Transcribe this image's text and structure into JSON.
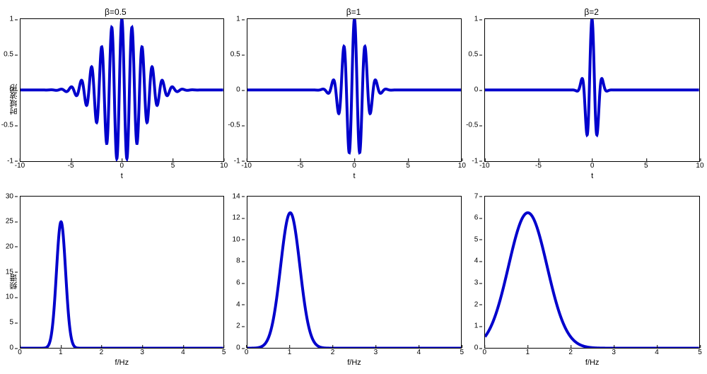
{
  "layout": {
    "rows": 2,
    "cols": 3,
    "background_color": "#ffffff"
  },
  "line_color": "#0000cc",
  "axis_color": "#000000",
  "tick_fontsize": 10,
  "label_fontsize": 11,
  "title_fontsize": 12,
  "row_ylabels": [
    "时域波形",
    "频谱"
  ],
  "panels": [
    {
      "id": "p0",
      "title": "β=0.5",
      "xlabel": "t",
      "ylabel": "时域波形",
      "type": "line",
      "xlim": [
        -10,
        10
      ],
      "ylim": [
        -1,
        1
      ],
      "xticks": [
        -10,
        -5,
        0,
        5,
        10
      ],
      "yticks": [
        -1,
        -0.5,
        0,
        0.5,
        1
      ],
      "formula": "gabor_wave",
      "params": {
        "beta": 0.5,
        "f0": 1.0
      }
    },
    {
      "id": "p1",
      "title": "β=1",
      "xlabel": "t",
      "ylabel": "",
      "type": "line",
      "xlim": [
        -10,
        10
      ],
      "ylim": [
        -1,
        1
      ],
      "xticks": [
        -10,
        -5,
        0,
        5,
        10
      ],
      "yticks": [
        -1,
        -0.5,
        0,
        0.5,
        1
      ],
      "formula": "gabor_wave",
      "params": {
        "beta": 1.0,
        "f0": 1.0
      }
    },
    {
      "id": "p2",
      "title": "β=2",
      "xlabel": "t",
      "ylabel": "",
      "type": "line",
      "xlim": [
        -10,
        10
      ],
      "ylim": [
        -1,
        1
      ],
      "xticks": [
        -10,
        -5,
        0,
        5,
        10
      ],
      "yticks": [
        -1,
        -0.5,
        0,
        0.5,
        1
      ],
      "formula": "gabor_wave",
      "params": {
        "beta": 2.0,
        "f0": 1.0
      }
    },
    {
      "id": "p3",
      "title": "",
      "xlabel": "f/Hz",
      "ylabel": "频谱",
      "type": "line",
      "xlim": [
        0,
        5
      ],
      "ylim": [
        0,
        30
      ],
      "xticks": [
        0,
        1,
        2,
        3,
        4,
        5
      ],
      "yticks": [
        0,
        5,
        10,
        15,
        20,
        25,
        30
      ],
      "formula": "gabor_spectrum",
      "params": {
        "beta": 0.5,
        "f0": 1.0,
        "amp": 25.0,
        "sigma_f": 0.113
      }
    },
    {
      "id": "p4",
      "title": "",
      "xlabel": "f/Hz",
      "ylabel": "",
      "type": "line",
      "xlim": [
        0,
        5
      ],
      "ylim": [
        0,
        14
      ],
      "xticks": [
        0,
        1,
        2,
        3,
        4,
        5
      ],
      "yticks": [
        0,
        2,
        4,
        6,
        8,
        10,
        12,
        14
      ],
      "formula": "gabor_spectrum",
      "params": {
        "beta": 1.0,
        "f0": 1.0,
        "amp": 12.5,
        "sigma_f": 0.225
      }
    },
    {
      "id": "p5",
      "title": "",
      "xlabel": "f/Hz",
      "ylabel": "",
      "type": "line",
      "xlim": [
        0,
        5
      ],
      "ylim": [
        0,
        7
      ],
      "xticks": [
        0,
        1,
        2,
        3,
        4,
        5
      ],
      "yticks": [
        0,
        1,
        2,
        3,
        4,
        5,
        6,
        7
      ],
      "formula": "gabor_spectrum",
      "params": {
        "beta": 2.0,
        "f0": 1.0,
        "amp": 6.25,
        "sigma_f": 0.45
      }
    }
  ]
}
